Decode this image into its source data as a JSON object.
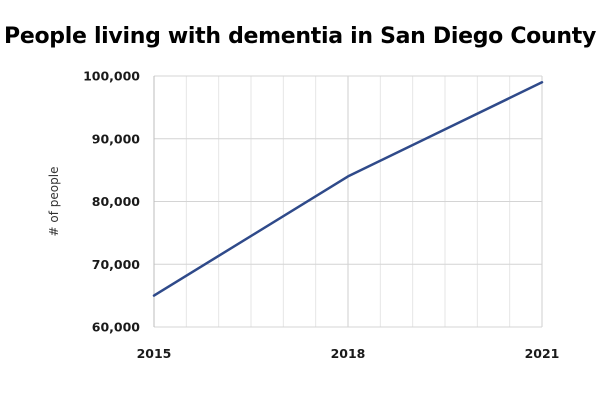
{
  "chart_data": {
    "type": "line",
    "title": "People living with dementia in San Diego County",
    "xlabel": "",
    "ylabel": "# of people",
    "x": [
      2015,
      2018,
      2021
    ],
    "x_tick_labels": [
      "2015",
      "2018",
      "2021"
    ],
    "y_tick_values": [
      60000,
      70000,
      80000,
      90000,
      100000
    ],
    "y_tick_labels": [
      "60,000",
      "70,000",
      "80,000",
      "90,000",
      "100,000"
    ],
    "xlim": [
      2015,
      2021
    ],
    "ylim": [
      60000,
      100000
    ],
    "grid": true,
    "legend": "none",
    "series": [
      {
        "values": [
          65000,
          84000,
          99000
        ],
        "color": "#2f4a8a"
      }
    ]
  }
}
